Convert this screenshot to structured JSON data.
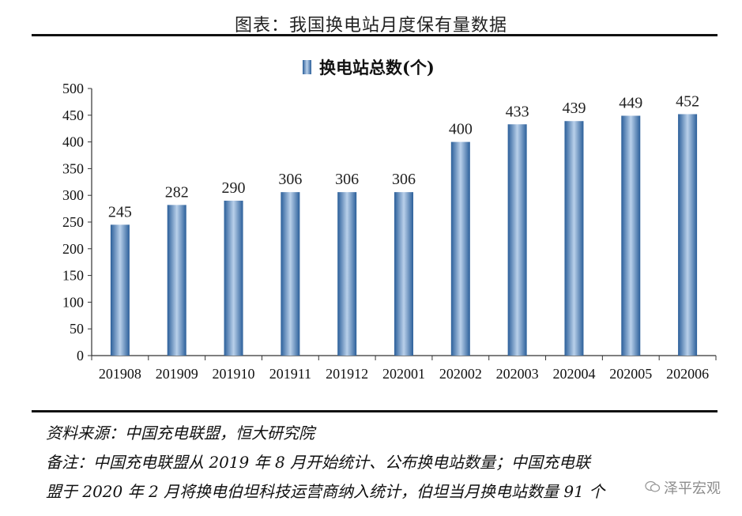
{
  "header": {
    "title": "图表：我国换电站月度保有量数据"
  },
  "chart_data": {
    "type": "bar",
    "legend": "换电站总数(个)",
    "legend_position": "top-center",
    "categories": [
      "201908",
      "201909",
      "201910",
      "201911",
      "201912",
      "202001",
      "202002",
      "202003",
      "202004",
      "202005",
      "202006"
    ],
    "series": [
      {
        "name": "换电站总数(个)",
        "values": [
          245,
          282,
          290,
          306,
          306,
          306,
          400,
          433,
          439,
          449,
          452
        ]
      }
    ],
    "ylim": [
      0,
      500
    ],
    "yticks": [
      0,
      50,
      100,
      150,
      200,
      250,
      300,
      350,
      400,
      450,
      500
    ],
    "grid": false,
    "bar_color": "#3f7fbf"
  },
  "footer": {
    "source": "资料来源：中国充电联盟，恒大研究院",
    "note_line1": "备注：中国充电联盟从 2019 年 8 月开始统计、公布换电站数量；中国充电联",
    "note_line2": "盟于 2020 年 2 月将换电伯坦科技运营商纳入统计，伯坦当月换电站数量 91 个"
  },
  "watermark": {
    "text": "泽平宏观",
    "icon": "wechat-icon"
  }
}
